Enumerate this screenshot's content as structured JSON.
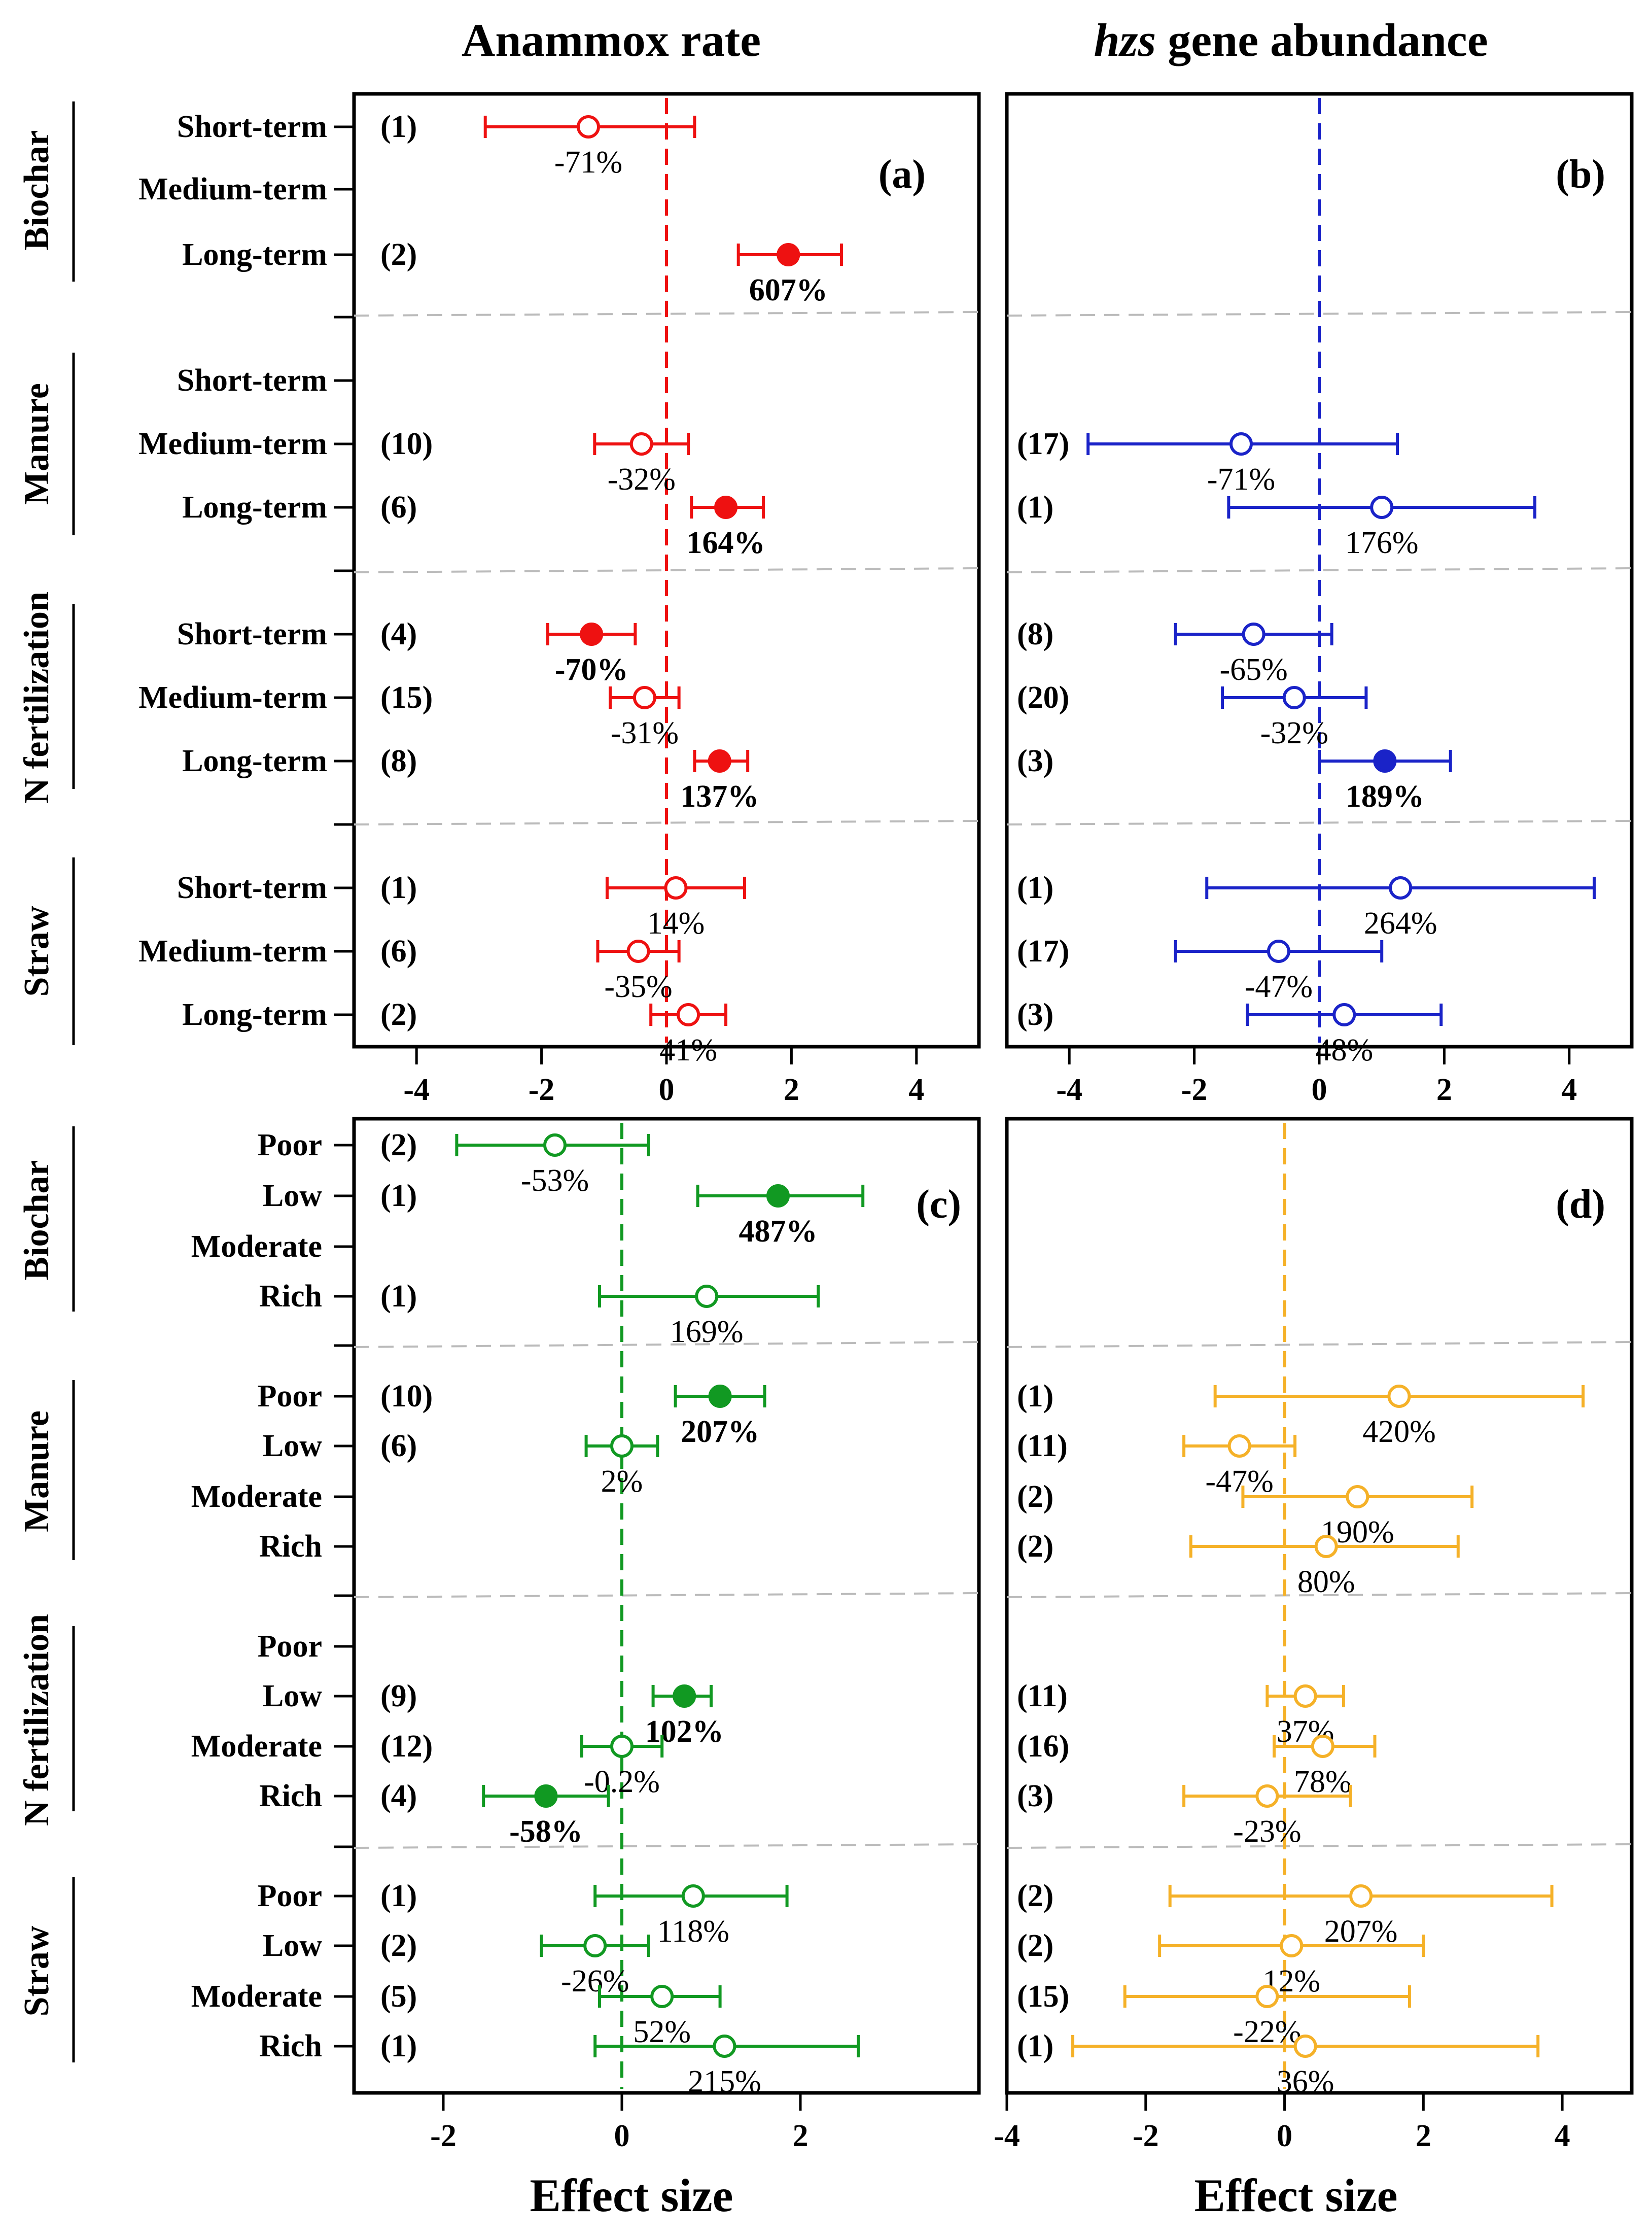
{
  "titles": {
    "anammox": "Anammox rate",
    "hzs_italic": "hzs",
    "hzs_rest": " gene abundance"
  },
  "xlabel": "Effect size",
  "panel_letters": {
    "a": "(a)",
    "b": "(b)",
    "c": "(c)",
    "d": "(d)"
  },
  "colors": {
    "a": "#ee1111",
    "b": "#1a23c8",
    "c": "#119922",
    "d": "#f5b128"
  },
  "top": {
    "row_labels": [
      "Short-term",
      "Medium-term",
      "Long-term"
    ],
    "groups": [
      "Biochar",
      "Manure",
      "N fertilization",
      "Straw"
    ]
  },
  "bottom": {
    "row_labels": [
      "Poor",
      "Low",
      "Moderate",
      "Rich"
    ],
    "groups": [
      "Biochar",
      "Manure",
      "N fertilization",
      "Straw"
    ]
  },
  "chart_data": [
    {
      "id": "a",
      "type": "scatter",
      "title": "Anammox rate",
      "xlabel": "",
      "xlim": [
        -5,
        5
      ],
      "xticks": [
        "-4",
        "-2",
        "0",
        "2",
        "4"
      ],
      "xtick_values": [
        -4,
        -2,
        0,
        2,
        4
      ],
      "points": [
        {
          "group": 0,
          "row": 0,
          "n": "(1)",
          "est": -1.25,
          "lo": -2.9,
          "hi": 0.45,
          "sig": false,
          "pct": "-71%"
        },
        {
          "group": 0,
          "row": 2,
          "n": "(2)",
          "est": 1.95,
          "lo": 1.15,
          "hi": 2.8,
          "sig": true,
          "pct": "607%"
        },
        {
          "group": 1,
          "row": 1,
          "n": "(10)",
          "est": -0.4,
          "lo": -1.15,
          "hi": 0.35,
          "sig": false,
          "pct": "-32%"
        },
        {
          "group": 1,
          "row": 2,
          "n": "(6)",
          "est": 0.95,
          "lo": 0.4,
          "hi": 1.55,
          "sig": true,
          "pct": "164%"
        },
        {
          "group": 2,
          "row": 0,
          "n": "(4)",
          "est": -1.2,
          "lo": -1.9,
          "hi": -0.5,
          "sig": true,
          "pct": "-70%"
        },
        {
          "group": 2,
          "row": 1,
          "n": "(15)",
          "est": -0.35,
          "lo": -0.9,
          "hi": 0.2,
          "sig": false,
          "pct": "-31%"
        },
        {
          "group": 2,
          "row": 2,
          "n": "(8)",
          "est": 0.85,
          "lo": 0.45,
          "hi": 1.3,
          "sig": true,
          "pct": "137%"
        },
        {
          "group": 3,
          "row": 0,
          "n": "(1)",
          "est": 0.15,
          "lo": -0.95,
          "hi": 1.25,
          "sig": false,
          "pct": "14%"
        },
        {
          "group": 3,
          "row": 1,
          "n": "(6)",
          "est": -0.45,
          "lo": -1.1,
          "hi": 0.2,
          "sig": false,
          "pct": "-35%"
        },
        {
          "group": 3,
          "row": 2,
          "n": "(2)",
          "est": 0.35,
          "lo": -0.25,
          "hi": 0.95,
          "sig": false,
          "pct": "41%"
        }
      ]
    },
    {
      "id": "b",
      "type": "scatter",
      "title": "hzs gene abundance",
      "xlabel": "",
      "xlim": [
        -5,
        5
      ],
      "xticks": [
        "-4",
        "-2",
        "0",
        "2",
        "4"
      ],
      "xtick_values": [
        -4,
        -2,
        0,
        2,
        4
      ],
      "points": [
        {
          "group": 1,
          "row": 1,
          "n": "(17)",
          "est": -1.25,
          "lo": -3.7,
          "hi": 1.25,
          "sig": false,
          "pct": "-71%"
        },
        {
          "group": 1,
          "row": 2,
          "n": "(1)",
          "est": 1.0,
          "lo": -1.45,
          "hi": 3.45,
          "sig": false,
          "pct": "176%"
        },
        {
          "group": 2,
          "row": 0,
          "n": "(8)",
          "est": -1.05,
          "lo": -2.3,
          "hi": 0.2,
          "sig": false,
          "pct": "-65%"
        },
        {
          "group": 2,
          "row": 1,
          "n": "(20)",
          "est": -0.4,
          "lo": -1.55,
          "hi": 0.75,
          "sig": false,
          "pct": "-32%"
        },
        {
          "group": 2,
          "row": 2,
          "n": "(3)",
          "est": 1.05,
          "lo": 0.0,
          "hi": 2.1,
          "sig": true,
          "pct": "189%"
        },
        {
          "group": 3,
          "row": 0,
          "n": "(1)",
          "est": 1.3,
          "lo": -1.8,
          "hi": 4.4,
          "sig": false,
          "pct": "264%"
        },
        {
          "group": 3,
          "row": 1,
          "n": "(17)",
          "est": -0.65,
          "lo": -2.3,
          "hi": 1.0,
          "sig": false,
          "pct": "-47%"
        },
        {
          "group": 3,
          "row": 2,
          "n": "(3)",
          "est": 0.4,
          "lo": -1.15,
          "hi": 1.95,
          "sig": false,
          "pct": "48%"
        }
      ]
    },
    {
      "id": "c",
      "type": "scatter",
      "title": "",
      "xlabel": "Effect size",
      "xlim": [
        -3,
        4
      ],
      "xticks": [
        "-2",
        "0",
        "2"
      ],
      "xtick_values": [
        -2,
        0,
        2
      ],
      "points": [
        {
          "group": 0,
          "row": 0,
          "n": "(2)",
          "est": -0.75,
          "lo": -1.85,
          "hi": 0.3,
          "sig": false,
          "pct": "-53%"
        },
        {
          "group": 0,
          "row": 1,
          "n": "(1)",
          "est": 1.75,
          "lo": 0.85,
          "hi": 2.7,
          "sig": true,
          "pct": "487%"
        },
        {
          "group": 0,
          "row": 3,
          "n": "(1)",
          "est": 0.95,
          "lo": -0.25,
          "hi": 2.2,
          "sig": false,
          "pct": "169%"
        },
        {
          "group": 1,
          "row": 0,
          "n": "(10)",
          "est": 1.1,
          "lo": 0.6,
          "hi": 1.6,
          "sig": true,
          "pct": "207%"
        },
        {
          "group": 1,
          "row": 1,
          "n": "(6)",
          "est": 0.0,
          "lo": -0.4,
          "hi": 0.4,
          "sig": false,
          "pct": "2%"
        },
        {
          "group": 2,
          "row": 1,
          "n": "(9)",
          "est": 0.7,
          "lo": 0.35,
          "hi": 1.0,
          "sig": true,
          "pct": "102%"
        },
        {
          "group": 2,
          "row": 2,
          "n": "(12)",
          "est": 0.0,
          "lo": -0.45,
          "hi": 0.45,
          "sig": false,
          "pct": "-0.2%"
        },
        {
          "group": 2,
          "row": 3,
          "n": "(4)",
          "est": -0.85,
          "lo": -1.55,
          "hi": -0.15,
          "sig": true,
          "pct": "-58%"
        },
        {
          "group": 3,
          "row": 0,
          "n": "(1)",
          "est": 0.8,
          "lo": -0.3,
          "hi": 1.85,
          "sig": false,
          "pct": "118%"
        },
        {
          "group": 3,
          "row": 1,
          "n": "(2)",
          "est": -0.3,
          "lo": -0.9,
          "hi": 0.3,
          "sig": false,
          "pct": "-26%"
        },
        {
          "group": 3,
          "row": 2,
          "n": "(5)",
          "est": 0.45,
          "lo": -0.25,
          "hi": 1.1,
          "sig": false,
          "pct": "52%"
        },
        {
          "group": 3,
          "row": 3,
          "n": "(1)",
          "est": 1.15,
          "lo": -0.3,
          "hi": 2.65,
          "sig": false,
          "pct": "215%"
        }
      ]
    },
    {
      "id": "d",
      "type": "scatter",
      "title": "",
      "xlabel": "Effect size",
      "xlim": [
        -4,
        5
      ],
      "xticks": [
        "-4",
        "-2",
        "0",
        "2",
        "4"
      ],
      "xtick_values": [
        -4,
        -2,
        0,
        2,
        4
      ],
      "points": [
        {
          "group": 1,
          "row": 0,
          "n": "(1)",
          "est": 1.65,
          "lo": -1.0,
          "hi": 4.3,
          "sig": false,
          "pct": "420%"
        },
        {
          "group": 1,
          "row": 1,
          "n": "(11)",
          "est": -0.65,
          "lo": -1.45,
          "hi": 0.15,
          "sig": false,
          "pct": "-47%"
        },
        {
          "group": 1,
          "row": 2,
          "n": "(2)",
          "est": 1.05,
          "lo": -0.6,
          "hi": 2.7,
          "sig": false,
          "pct": "190%"
        },
        {
          "group": 1,
          "row": 3,
          "n": "(2)",
          "est": 0.6,
          "lo": -1.35,
          "hi": 2.5,
          "sig": false,
          "pct": "80%"
        },
        {
          "group": 2,
          "row": 1,
          "n": "(11)",
          "est": 0.3,
          "lo": -0.25,
          "hi": 0.85,
          "sig": false,
          "pct": "37%"
        },
        {
          "group": 2,
          "row": 2,
          "n": "(16)",
          "est": 0.55,
          "lo": -0.15,
          "hi": 1.3,
          "sig": false,
          "pct": "78%"
        },
        {
          "group": 2,
          "row": 3,
          "n": "(3)",
          "est": -0.25,
          "lo": -1.45,
          "hi": 0.95,
          "sig": false,
          "pct": "-23%"
        },
        {
          "group": 3,
          "row": 0,
          "n": "(2)",
          "est": 1.1,
          "lo": -1.65,
          "hi": 3.85,
          "sig": false,
          "pct": "207%"
        },
        {
          "group": 3,
          "row": 1,
          "n": "(2)",
          "est": 0.1,
          "lo": -1.8,
          "hi": 2.0,
          "sig": false,
          "pct": "12%"
        },
        {
          "group": 3,
          "row": 2,
          "n": "(15)",
          "est": -0.25,
          "lo": -2.3,
          "hi": 1.8,
          "sig": false,
          "pct": "-22%"
        },
        {
          "group": 3,
          "row": 3,
          "n": "(1)",
          "est": 0.3,
          "lo": -3.05,
          "hi": 3.65,
          "sig": false,
          "pct": "36%"
        }
      ]
    }
  ]
}
